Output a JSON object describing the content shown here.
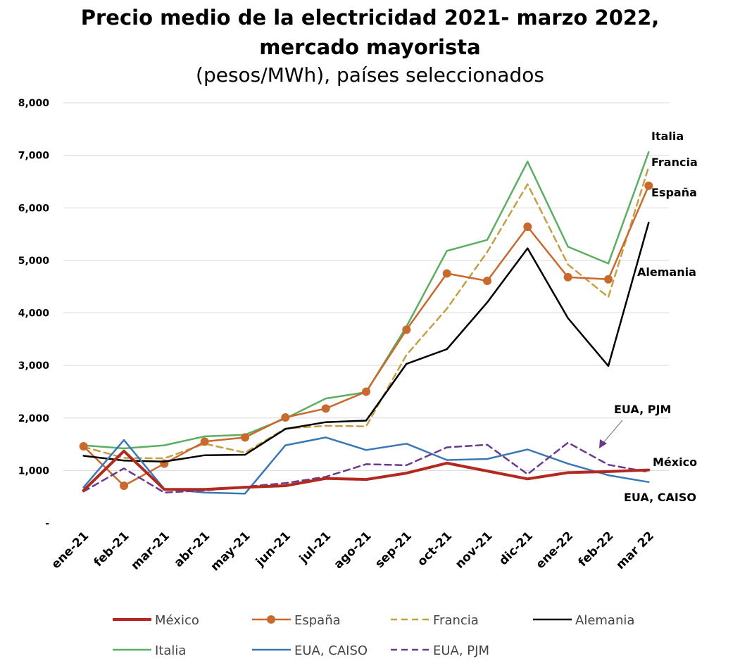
{
  "chart_data": {
    "type": "line",
    "title": "Precio medio de la electricidad 2021- marzo 2022,",
    "title_line2": "mercado mayorista",
    "subtitle": "(pesos/MWh), países seleccionados",
    "categories": [
      "ene-21",
      "feb-21",
      "mar-21",
      "abr-21",
      "may-21",
      "jun-21",
      "jul-21",
      "ago-21",
      "sep-21",
      "oct-21",
      "nov-21",
      "dic-21",
      "ene-22",
      "feb-22",
      "mar 22"
    ],
    "ylim": [
      0,
      8000
    ],
    "yticks": [
      "-",
      "1,000",
      "2,000",
      "3,000",
      "4,000",
      "5,000",
      "6,000",
      "7,000",
      "8,000"
    ],
    "grid": true,
    "legend_position": "bottom",
    "series": [
      {
        "name": "México",
        "color": "#b22a1f",
        "style": "solid",
        "width": 4,
        "markers": false,
        "values": [
          620,
          1370,
          640,
          640,
          680,
          710,
          850,
          830,
          950,
          1140,
          990,
          840,
          960,
          980,
          1010
        ]
      },
      {
        "name": "España",
        "color": "#c9692d",
        "style": "solid",
        "width": 2.5,
        "markers": true,
        "values": [
          1460,
          710,
          1130,
          1550,
          1630,
          2010,
          2180,
          2500,
          3680,
          4750,
          4610,
          5640,
          4680,
          4640,
          6420
        ]
      },
      {
        "name": "Francia",
        "color": "#c4a045",
        "style": "dashed",
        "width": 2.5,
        "markers": false,
        "values": [
          1450,
          1240,
          1230,
          1510,
          1340,
          1800,
          1850,
          1840,
          3200,
          4080,
          5160,
          6450,
          4920,
          4300,
          6780
        ]
      },
      {
        "name": "Alemania",
        "color": "#000000",
        "style": "solid",
        "width": 2.5,
        "markers": false,
        "values": [
          1280,
          1190,
          1170,
          1290,
          1300,
          1790,
          1920,
          1950,
          3030,
          3310,
          4200,
          5230,
          3900,
          2990,
          5720
        ]
      },
      {
        "name": "Italia",
        "color": "#5bae62",
        "style": "solid",
        "width": 2.5,
        "markers": false,
        "values": [
          1480,
          1420,
          1480,
          1650,
          1680,
          1990,
          2370,
          2490,
          3740,
          5180,
          5390,
          6880,
          5260,
          4940,
          7060
        ]
      },
      {
        "name": "EUA, CAISO",
        "color": "#3a78b5",
        "style": "solid",
        "width": 2.5,
        "markers": false,
        "values": [
          680,
          1580,
          650,
          580,
          560,
          1480,
          1630,
          1390,
          1510,
          1200,
          1220,
          1400,
          1130,
          910,
          780
        ]
      },
      {
        "name": "EUA, PJM",
        "color": "#6b3a8c",
        "style": "dashed",
        "width": 2.5,
        "markers": false,
        "values": [
          600,
          1040,
          580,
          620,
          690,
          760,
          880,
          1120,
          1100,
          1440,
          1490,
          930,
          1530,
          1110,
          970
        ]
      }
    ],
    "annotations": [
      "Italia",
      "Francia",
      "España",
      "Alemania",
      "EUA, PJM",
      "México",
      "EUA, CAISO"
    ]
  }
}
